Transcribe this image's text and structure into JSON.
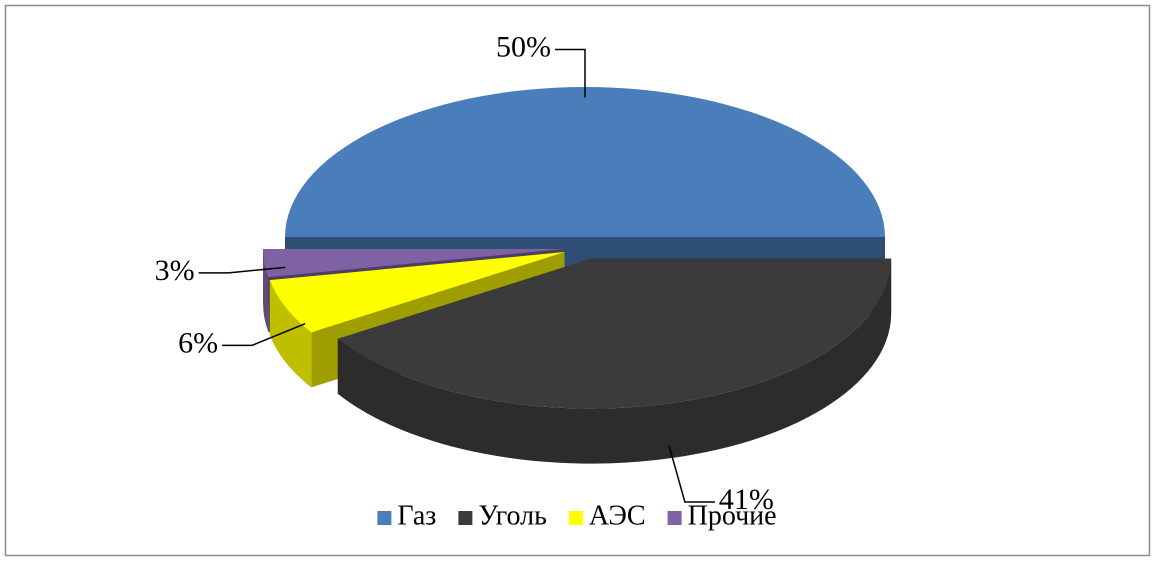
{
  "chart_data": {
    "type": "pie",
    "categories": [
      "Газ",
      "Уголь",
      "АЭС",
      "Прочие"
    ],
    "values": [
      50,
      41,
      6,
      3
    ],
    "value_labels": [
      "50%",
      "41%",
      "6%",
      "3%"
    ],
    "colors": [
      "#4a7ebb",
      "#3b3b3b",
      "#ffff00",
      "#7e62a3"
    ],
    "legend": "bottom"
  }
}
